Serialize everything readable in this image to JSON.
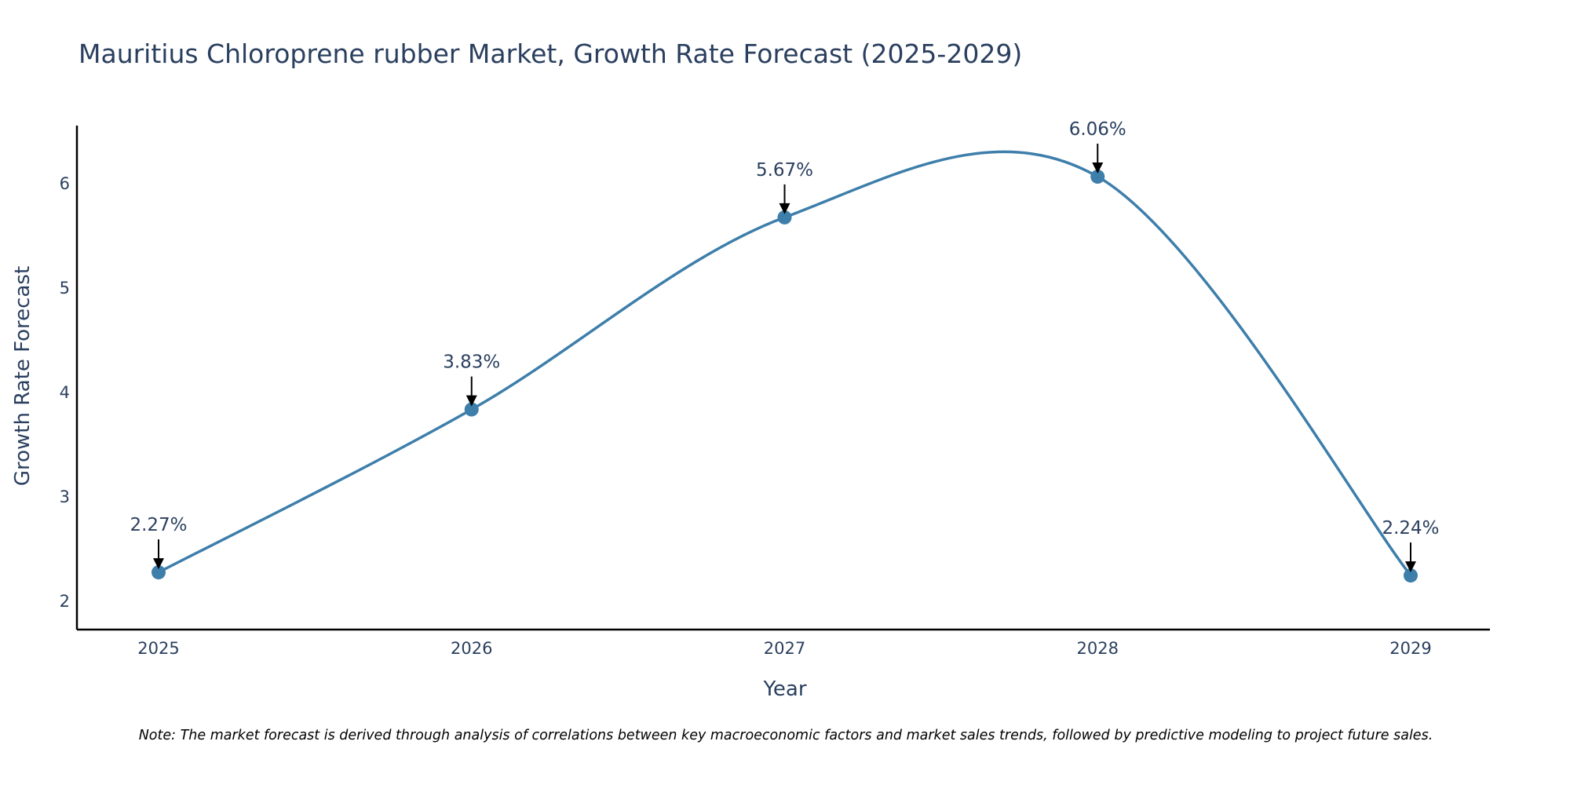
{
  "colors": {
    "line": "#3d7eaa",
    "marker": "#3d7eaa",
    "text": "#2a3f5f",
    "axis": "#000000",
    "arrow": "#000000"
  },
  "chart_data": {
    "type": "line",
    "title": "Mauritius Chloroprene rubber Market, Growth Rate Forecast (2025-2029)",
    "xlabel": "Year",
    "ylabel": "Growth Rate Forecast",
    "categories": [
      "2025",
      "2026",
      "2027",
      "2028",
      "2029"
    ],
    "values": [
      2.27,
      3.83,
      5.67,
      6.06,
      2.24
    ],
    "labels": [
      "2.27%",
      "3.83%",
      "5.67%",
      "6.06%",
      "2.24%"
    ],
    "yticks": [
      2,
      3,
      4,
      5,
      6
    ],
    "ylim": [
      1.73,
      6.55
    ],
    "grid": false,
    "line_shape": "spline"
  },
  "note": "Note: The market forecast is derived through analysis of correlations between key macroeconomic factors and market sales trends, followed by predictive modeling to project future sales."
}
